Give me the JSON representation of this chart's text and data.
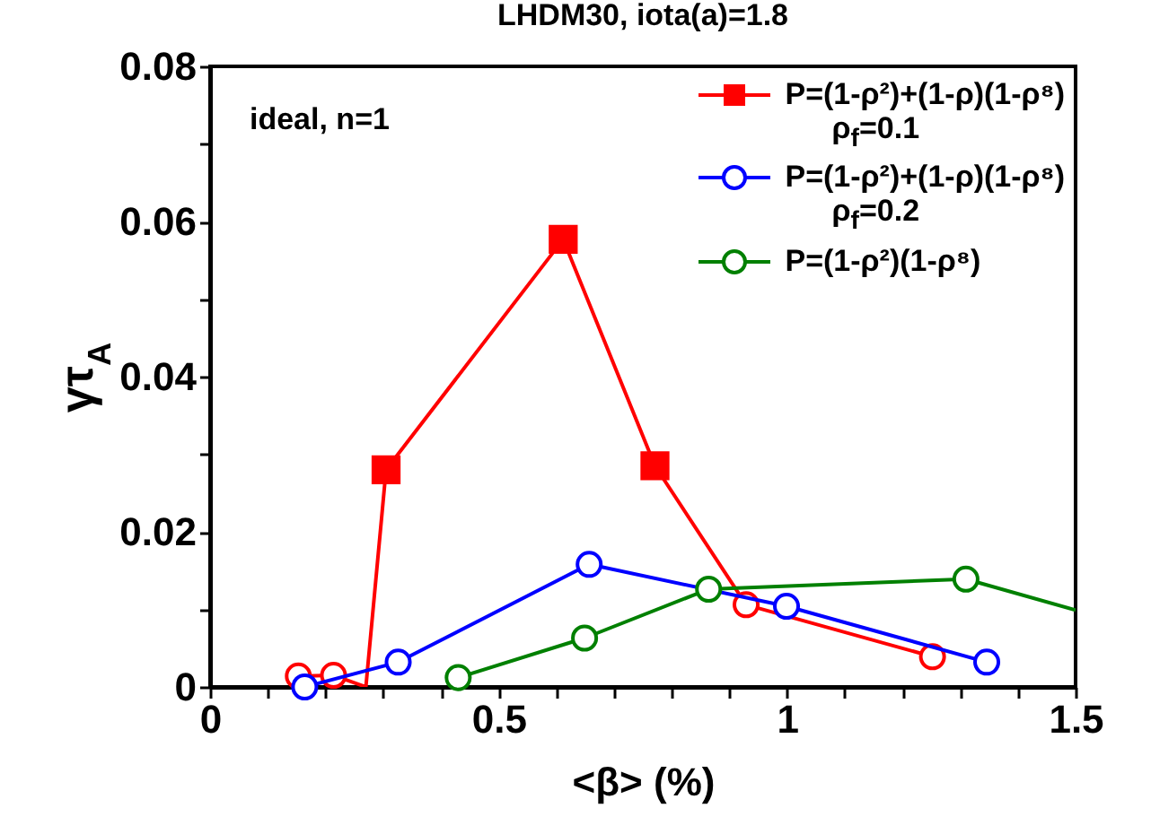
{
  "chart_data": {
    "type": "line",
    "title": "LHDM30, iota(a)=1.8",
    "xlabel": "<β> (%)",
    "ylabel": "γτ$_{A}$",
    "annotations": [
      "ideal, n=1"
    ],
    "series": [
      {
        "name": "P=(1-ρ²)+(1-ρ)(1-ρ⁸)\nρ$_{f}$=0.1",
        "color": "#ff0000",
        "type": "line",
        "marker": "none",
        "x": [
          0.153,
          0.214,
          0.27,
          0.305,
          0.612,
          0.771,
          0.929,
          1.252
        ],
        "values": [
          0.0014,
          0.0015,
          0,
          0.028,
          0.0577,
          0.0285,
          0.0106,
          0.0039
        ]
      },
      {
        "color": "#ff0000",
        "type": "scatter",
        "marker": "square",
        "x": [
          0.305,
          0.612,
          0.771
        ],
        "values": [
          0.028,
          0.0577,
          0.0285
        ]
      },
      {
        "color": "#ff0000",
        "type": "scatter",
        "marker": "circle",
        "x": [
          0.153,
          0.214,
          0.929,
          1.252
        ],
        "values": [
          0.0014,
          0.0015,
          0.0106,
          0.0039
        ]
      },
      {
        "name": "P=(1-ρ²)+(1-ρ)(1-ρ⁸)\nρ$_{f}$=0.2",
        "color": "#0000ff",
        "type": "line",
        "marker": "circle",
        "x": [
          0.164,
          0.326,
          0.657,
          0.999,
          1.346
        ],
        "values": [
          0,
          0.0032,
          0.0158,
          0.0104,
          0.0032
        ]
      },
      {
        "name": "P=(1-ρ²)(1-ρ⁸)",
        "color": "#008000",
        "type": "line",
        "marker": "none",
        "x": [
          0.43,
          0.649,
          0.864,
          1.31,
          1.5
        ],
        "values": [
          0.0012,
          0.0063,
          0.0126,
          0.0139,
          0.0099
        ]
      },
      {
        "color": "#008000",
        "type": "scatter",
        "marker": "circle",
        "x": [
          0.43,
          0.649,
          0.864,
          1.31
        ],
        "values": [
          0.0012,
          0.0063,
          0.0126,
          0.0139
        ]
      }
    ],
    "xlim": [
      0,
      1.5
    ],
    "ylim": [
      0,
      0.08
    ],
    "xticks": [
      0,
      {
        "value": 0.1,
        "label": null
      },
      {
        "value": 0.2,
        "label": null
      },
      {
        "value": 0.3,
        "label": null
      },
      {
        "value": 0.4,
        "label": null
      },
      0.5,
      {
        "value": 0.6,
        "label": null
      },
      {
        "value": 0.7,
        "label": null
      },
      {
        "value": 0.8,
        "label": null
      },
      {
        "value": 0.9,
        "label": null
      },
      1,
      {
        "value": 1.1,
        "label": null
      },
      {
        "value": 1.2,
        "label": null
      },
      {
        "value": 1.3,
        "label": null
      },
      {
        "value": 1.4,
        "label": null
      },
      1.5
    ],
    "yticks": [
      0,
      {
        "value": 0.01,
        "label": null
      },
      0.02,
      {
        "value": 0.03,
        "label": null
      },
      0.04,
      {
        "value": 0.05,
        "label": null
      },
      0.06,
      {
        "value": 0.07,
        "label": null
      },
      0.08
    ],
    "grid": false,
    "legend": "top right"
  }
}
